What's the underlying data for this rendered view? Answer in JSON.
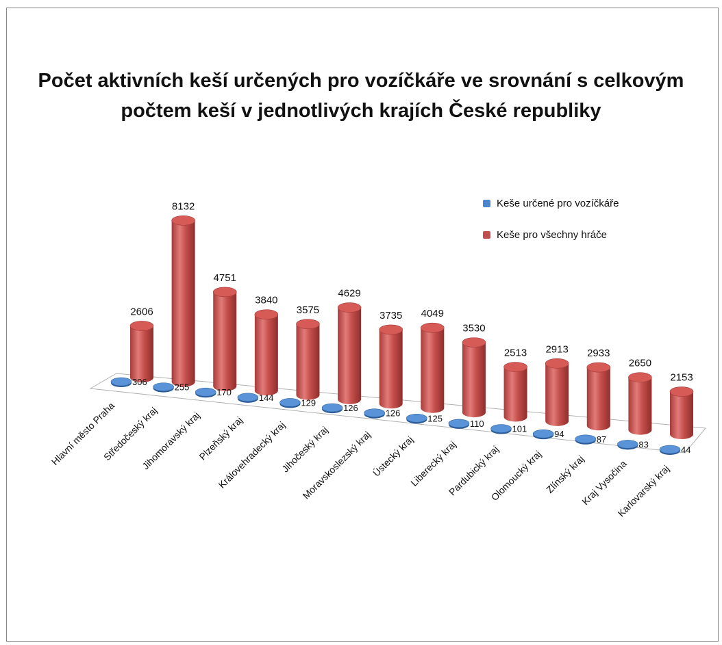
{
  "chart_data": {
    "type": "bar",
    "title": "Počet aktivních keší určených pro vozíčkáře ve srovnání s celkovým počtem keší v jednotlivých krajích České republiky",
    "categories": [
      "Hlavní město Praha",
      "Středočeský kraj",
      "Jihomoravský kraj",
      "Plzeňský kraj",
      "Královehradecký kraj",
      "Jihočeský kraj",
      "Moravskoslezský kraj",
      "Ústecký kraj",
      "Liberecký kraj",
      "Pardubický kraj",
      "Olomoucký kraj",
      "Zlínský kraj",
      "Kraj Vysočina",
      "Karlovarský kraj"
    ],
    "series": [
      {
        "name": "Keše určené pro vozíčkáře",
        "values": [
          306,
          255,
          170,
          144,
          129,
          126,
          126,
          125,
          110,
          101,
          94,
          87,
          83,
          44
        ]
      },
      {
        "name": "Keše pro všechny hráče",
        "values": [
          2606,
          8132,
          4751,
          3840,
          3575,
          4629,
          3735,
          4049,
          3530,
          2513,
          2913,
          2933,
          2650,
          2153
        ]
      }
    ],
    "colors": {
      "blue": "#4a86d0",
      "red": "#c0504d"
    },
    "legend_position": "top-right",
    "xlabel": "",
    "ylabel": ""
  }
}
